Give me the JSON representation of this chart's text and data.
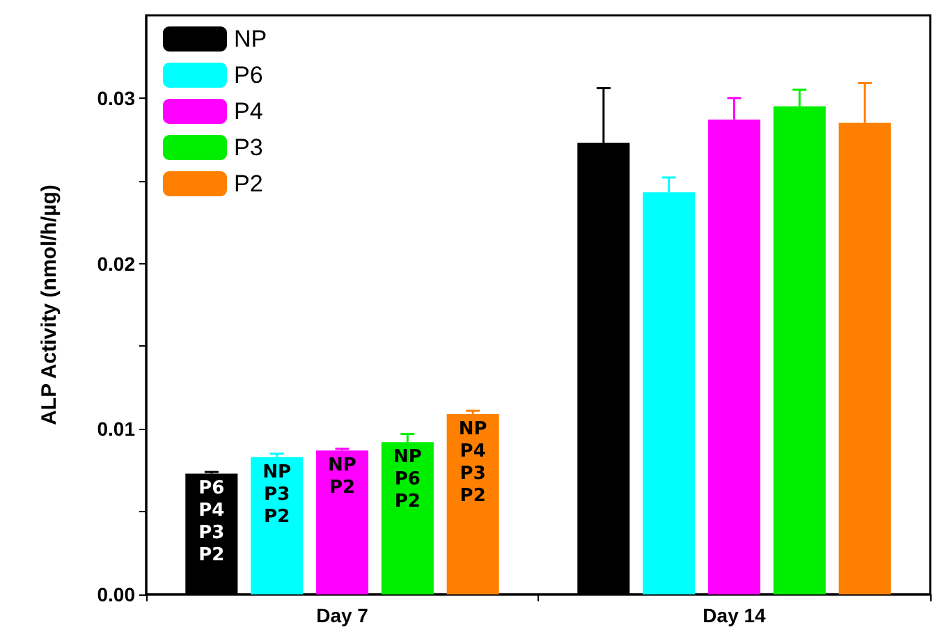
{
  "chart_data": {
    "type": "bar",
    "ylabel": "ALP Activity (nmol/h/µg)",
    "categories": [
      "Day 7",
      "Day 14"
    ],
    "series": [
      {
        "name": "NP",
        "color": "#000000",
        "values": [
          0.0073,
          0.0273
        ],
        "errors": [
          [
            0.0073,
            0.0074
          ],
          [
            0.0273,
            0.0306
          ]
        ],
        "value_labels": [
          "P6\nP4\nP3\nP2",
          null
        ]
      },
      {
        "name": "P6",
        "color": "#00ffff",
        "values": [
          0.0083,
          0.0243
        ],
        "errors": [
          [
            0.0083,
            0.0085
          ],
          [
            0.0243,
            0.0252
          ]
        ],
        "value_labels": [
          "NP\nP3\nP2",
          null
        ]
      },
      {
        "name": "P4",
        "color": "#ff00ff",
        "values": [
          0.0087,
          0.0287
        ],
        "errors": [
          [
            0.0087,
            0.0088
          ],
          [
            0.0287,
            0.03
          ]
        ],
        "value_labels": [
          "NP\nP2",
          null
        ]
      },
      {
        "name": "P3",
        "color": "#00ee00",
        "values": [
          0.0092,
          0.0295
        ],
        "errors": [
          [
            0.0092,
            0.0097
          ],
          [
            0.0295,
            0.0305
          ]
        ],
        "value_labels": [
          "NP\nP6\nP2",
          null
        ]
      },
      {
        "name": "P2",
        "color": "#ff8000",
        "values": [
          0.0109,
          0.0285
        ],
        "errors": [
          [
            0.0109,
            0.0111
          ],
          [
            0.0285,
            0.0309
          ]
        ],
        "value_labels": [
          "NP\nP4\nP3\nP2",
          null
        ]
      }
    ],
    "ylim": [
      0,
      0.035
    ],
    "yticks": [
      {
        "value": 0,
        "label": "0.00"
      },
      {
        "value": 0.005,
        "label": null
      },
      {
        "value": 0.01,
        "label": "0.01"
      },
      {
        "value": 0.015,
        "label": null
      },
      {
        "value": 0.02,
        "label": "0.02"
      },
      {
        "value": 0.025,
        "label": null
      },
      {
        "value": 0.03,
        "label": "0.03"
      }
    ],
    "legend": "top left",
    "grid": false
  }
}
